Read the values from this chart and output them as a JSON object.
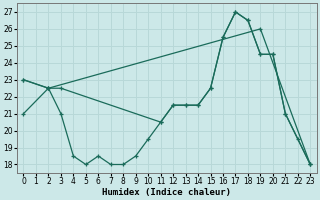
{
  "xlabel": "Humidex (Indice chaleur)",
  "bg_color": "#cce8e8",
  "grid_color": "#b8d8d8",
  "line_color": "#1a6b5a",
  "ylim": [
    17.5,
    27.5
  ],
  "xlim": [
    -0.5,
    23.5
  ],
  "yticks": [
    18,
    19,
    20,
    21,
    22,
    23,
    24,
    25,
    26,
    27
  ],
  "xticks": [
    0,
    1,
    2,
    3,
    4,
    5,
    6,
    7,
    8,
    9,
    10,
    11,
    12,
    13,
    14,
    15,
    16,
    17,
    18,
    19,
    20,
    21,
    22,
    23
  ],
  "line1_x": [
    0,
    2,
    19,
    23
  ],
  "line1_y": [
    23,
    22.5,
    26,
    18
  ],
  "line2_x": [
    0,
    2,
    3,
    11,
    12,
    13,
    14,
    15,
    16,
    17,
    18,
    19,
    20,
    21,
    23
  ],
  "line2_y": [
    23,
    22.5,
    22.5,
    20.5,
    21.5,
    21.5,
    21.5,
    22.5,
    25.5,
    27,
    26.5,
    24.5,
    24.5,
    21,
    18
  ],
  "line3_x": [
    0,
    2,
    3,
    4,
    5,
    6,
    7,
    8,
    9,
    10,
    11,
    12,
    13,
    14,
    15,
    16,
    17,
    18,
    19,
    20,
    21,
    22,
    23
  ],
  "line3_y": [
    21,
    22.5,
    21,
    18.5,
    18,
    18.5,
    18,
    18,
    18.5,
    19.5,
    20.5,
    21.5,
    21.5,
    21.5,
    22.5,
    25.5,
    27,
    26.5,
    24.5,
    24.5,
    21,
    19.5,
    18
  ]
}
